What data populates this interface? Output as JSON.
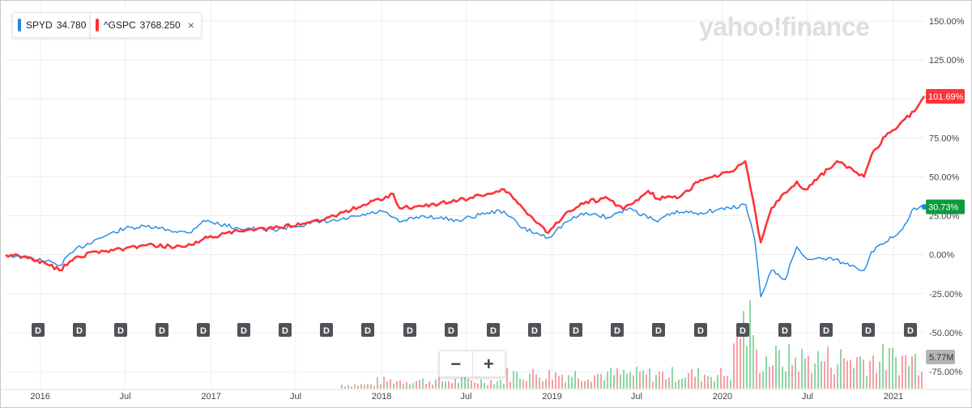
{
  "watermark": "yahoo!finance",
  "legend": [
    {
      "symbol": "SPYD",
      "value": "34.780",
      "color": "#1e88e5",
      "closable": false
    },
    {
      "symbol": "^GSPC",
      "value": "3768.250",
      "color": "#ff333a",
      "closable": true,
      "close_icon": "×"
    }
  ],
  "zoom": {
    "minus": "−",
    "plus": "+"
  },
  "dividend_marker_label": "D",
  "volume_label": "5.77M",
  "chart_data": {
    "type": "line",
    "x_ticks": [
      "2016",
      "Jul",
      "2017",
      "Jul",
      "2018",
      "Jul",
      "2019",
      "Jul",
      "2020",
      "Jul",
      "2021"
    ],
    "x_range": [
      "2015-10-19",
      "2021-03-08"
    ],
    "y_ticks": [
      "150.00%",
      "125.00%",
      "100.00%",
      "75.00%",
      "50.00%",
      "25.00%",
      "0.00%",
      "-25.00%",
      "-50.00%",
      "-75.00%"
    ],
    "ylim": [
      -75,
      150
    ],
    "grid": true,
    "legend": "top-left",
    "series": [
      {
        "name": "SPYD",
        "color": "#1e88e5",
        "end_label": "30.73%",
        "end_label_color": "#0c9b3b",
        "x": [
          "2015-10-19",
          "2015-12-01",
          "2016-01-15",
          "2016-02-11",
          "2016-03-15",
          "2016-05-01",
          "2016-07-01",
          "2016-08-15",
          "2016-11-15",
          "2016-12-15",
          "2017-03-01",
          "2017-05-15",
          "2017-08-01",
          "2017-10-01",
          "2018-01-02",
          "2018-02-08",
          "2018-04-01",
          "2018-06-15",
          "2018-08-15",
          "2018-09-20",
          "2018-10-30",
          "2018-12-24",
          "2019-01-31",
          "2019-03-15",
          "2019-05-01",
          "2019-06-15",
          "2019-08-15",
          "2019-09-15",
          "2019-11-15",
          "2020-01-15",
          "2020-02-20",
          "2020-03-10",
          "2020-03-23",
          "2020-04-15",
          "2020-05-14",
          "2020-06-08",
          "2020-07-01",
          "2020-08-15",
          "2020-09-15",
          "2020-10-30",
          "2020-11-15",
          "2020-12-15",
          "2021-01-15",
          "2021-02-15",
          "2021-03-08"
        ],
        "values": [
          0,
          -2,
          -4,
          -7,
          3,
          10,
          17,
          18,
          14,
          22,
          17,
          16,
          20,
          22,
          28,
          21,
          25,
          22,
          27,
          28,
          17,
          11,
          21,
          27,
          24,
          30,
          21,
          27,
          27,
          30,
          32,
          10,
          -27,
          -10,
          -16,
          5,
          -3,
          -2,
          -5,
          -10,
          2,
          8,
          15,
          30,
          30.73
        ]
      },
      {
        "name": "^GSPC",
        "color": "#ff333a",
        "end_label": "101.69%",
        "end_label_color": "#ff333a",
        "x": [
          "2015-10-19",
          "2015-12-01",
          "2016-01-15",
          "2016-02-11",
          "2016-03-15",
          "2016-05-01",
          "2016-07-01",
          "2016-08-15",
          "2016-11-04",
          "2016-12-15",
          "2017-03-01",
          "2017-05-15",
          "2017-08-01",
          "2017-10-01",
          "2018-01-26",
          "2018-02-08",
          "2018-04-01",
          "2018-06-15",
          "2018-08-15",
          "2018-09-20",
          "2018-10-30",
          "2018-12-24",
          "2019-01-31",
          "2019-03-15",
          "2019-05-01",
          "2019-06-03",
          "2019-07-26",
          "2019-08-15",
          "2019-10-01",
          "2019-11-15",
          "2020-01-15",
          "2020-02-19",
          "2020-03-23",
          "2020-04-15",
          "2020-06-08",
          "2020-06-26",
          "2020-08-15",
          "2020-09-02",
          "2020-10-30",
          "2020-11-15",
          "2020-12-15",
          "2021-01-15",
          "2021-02-15",
          "2021-03-08"
        ],
        "values": [
          0,
          -1,
          -6,
          -10,
          -2,
          2,
          4,
          6,
          5,
          10,
          15,
          17,
          21,
          26,
          39,
          30,
          31,
          35,
          39,
          42,
          30,
          14,
          27,
          34,
          36,
          29,
          41,
          36,
          37,
          48,
          53,
          60,
          8,
          30,
          47,
          42,
          55,
          60,
          50,
          64,
          76,
          84,
          92,
          101.69
        ]
      }
    ],
    "volume": {
      "max_label": "5.77M"
    }
  }
}
